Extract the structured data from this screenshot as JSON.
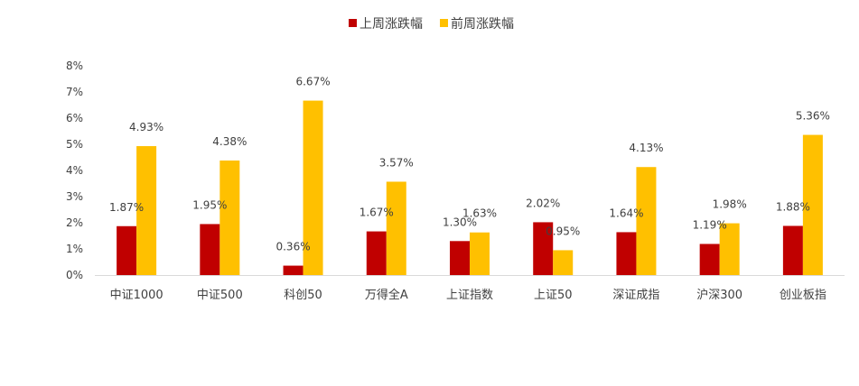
{
  "chart_data": {
    "type": "bar",
    "title": "",
    "xlabel": "",
    "ylabel": "",
    "ylim": [
      0,
      8
    ],
    "y_tick_labels": [
      "0%",
      "1%",
      "2%",
      "3%",
      "4%",
      "5%",
      "6%",
      "7%",
      "8%"
    ],
    "grid": false,
    "legend_position": "top-center",
    "categories": [
      "中证1000",
      "中证500",
      "科创50",
      "万得全A",
      "上证指数",
      "上证50",
      "深证成指",
      "沪深300",
      "创业板指"
    ],
    "series": [
      {
        "name": "上周涨跌幅",
        "color": "#C00000",
        "values": [
          1.87,
          1.95,
          0.36,
          1.67,
          1.3,
          2.02,
          1.64,
          1.19,
          1.88
        ],
        "labels": [
          "1.87%",
          "1.95%",
          "0.36%",
          "1.67%",
          "1.30%",
          "2.02%",
          "1.64%",
          "1.19%",
          "1.88%"
        ]
      },
      {
        "name": "前周涨跌幅",
        "color": "#FFC000",
        "values": [
          4.93,
          4.38,
          6.67,
          3.57,
          1.63,
          0.95,
          4.13,
          1.98,
          5.36
        ],
        "labels": [
          "4.93%",
          "4.38%",
          "6.67%",
          "3.57%",
          "1.63%",
          "0.95%",
          "4.13%",
          "1.98%",
          "5.36%"
        ]
      }
    ]
  }
}
